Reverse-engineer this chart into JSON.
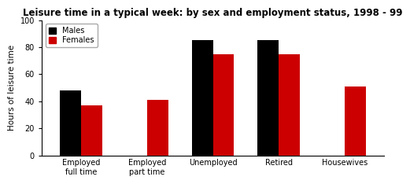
{
  "title": "Leisure time in a typical week: by sex and employment status, 1998 - 99",
  "ylabel": "Hours of leisure time",
  "categories": [
    "Employed\nfull time",
    "Employed\npart time",
    "Unemployed",
    "Retired",
    "Housewives"
  ],
  "males": [
    48,
    0,
    85,
    85,
    0
  ],
  "females": [
    37,
    41,
    75,
    75,
    51
  ],
  "male_color": "#000000",
  "female_color": "#cc0000",
  "ylim": [
    0,
    100
  ],
  "yticks": [
    0,
    20,
    40,
    60,
    80,
    100
  ],
  "bar_width": 0.32,
  "background_color": "#ffffff",
  "legend_labels": [
    "Males",
    "Females"
  ],
  "title_fontsize": 8.5,
  "axis_label_fontsize": 7.5,
  "tick_fontsize": 7.0
}
